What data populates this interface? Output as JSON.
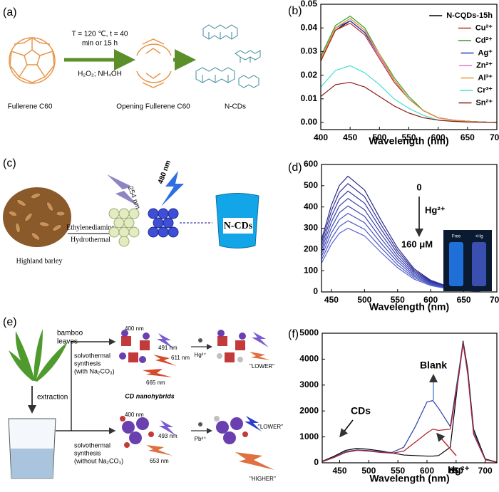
{
  "panels": {
    "a": {
      "label": "(a)",
      "condition": [
        "T = 120 ℃, t = 40",
        "min or 15 h"
      ],
      "reagents": "H₂O₂; NH₄OH",
      "items": [
        "Fullerene C60",
        "Opening Fullerene C60",
        "N-CDs"
      ]
    },
    "c": {
      "label": "(c)",
      "reagent": "Ethylenediamine",
      "method": "Hydrothermal",
      "source": "Highland barley",
      "excitations": [
        "254 nm",
        "480 nm"
      ],
      "product": "N-CDs"
    },
    "e": {
      "label": "(e)",
      "source": [
        "bamboo",
        "leaves"
      ],
      "step": "extraction",
      "route1": [
        "solvothermal",
        "synthesis",
        "(with Na₂CO₃)"
      ],
      "product": "CD nanohybrids",
      "route1_wavelengths": [
        "400 nm",
        "491 nm",
        "611 nm",
        "665 nm"
      ],
      "ion1": "Hg²⁺",
      "result1": "\"LOWER\"",
      "route2": [
        "solvothermal",
        "synthesis",
        "(without Na₂CO₃)"
      ],
      "route2_wavelengths": [
        "400 nm",
        "493 nm",
        "653 nm"
      ],
      "ion2": "Pb²⁺",
      "result2": [
        "\"LOWER\"",
        "\"HIGHER\""
      ]
    }
  },
  "chart_data": [
    {
      "type": "line",
      "label": "(b)",
      "x_label": "Wavelength (nm)",
      "legend": "upper right",
      "x": [
        400,
        425,
        450,
        475,
        500,
        525,
        550,
        575,
        600,
        625,
        650,
        675,
        700
      ],
      "xlim": [
        400,
        700
      ],
      "xticks": [
        400,
        450,
        500,
        550,
        600,
        650,
        700
      ],
      "ylim": [
        -0.003,
        0.05
      ],
      "yticks": [
        {
          "value": 0,
          "label": "0.00"
        },
        0.01,
        0.02,
        0.03,
        0.04,
        0.05
      ],
      "series": [
        {
          "name": "N-CQDs-15h",
          "color": "#000000",
          "values": [
            0.026,
            0.039,
            0.043,
            0.038,
            0.028,
            0.018,
            0.01,
            0.005,
            0.002,
            0.001,
            0.0005,
            0.0002,
            0
          ]
        },
        {
          "name": "Cu²⁺",
          "color": "#c0282d",
          "values": [
            0.026,
            0.039,
            0.042,
            0.037,
            0.027,
            0.017,
            0.01,
            0.005,
            0.002,
            0.001,
            0.0005,
            0.0002,
            0
          ]
        },
        {
          "name": "Cd²⁺",
          "color": "#2ca02c",
          "values": [
            0.028,
            0.041,
            0.045,
            0.04,
            0.029,
            0.019,
            0.011,
            0.005,
            0.002,
            0.001,
            0.0005,
            0.0002,
            0
          ]
        },
        {
          "name": "Ag⁺",
          "color": "#1f3fbf",
          "values": [
            0.027,
            0.04,
            0.043,
            0.038,
            0.028,
            0.018,
            0.01,
            0.005,
            0.002,
            0.001,
            0.0005,
            0.0002,
            0
          ]
        },
        {
          "name": "Zn²⁺",
          "color": "#e377c2",
          "values": [
            0.027,
            0.04,
            0.044,
            0.039,
            0.028,
            0.018,
            0.01,
            0.005,
            0.002,
            0.001,
            0.0005,
            0.0002,
            0
          ]
        },
        {
          "name": "Al³⁺",
          "color": "#e69a2e",
          "values": [
            0.027,
            0.04,
            0.044,
            0.039,
            0.029,
            0.018,
            0.01,
            0.005,
            0.002,
            0.001,
            0.0005,
            0.0002,
            0
          ]
        },
        {
          "name": "Cr³⁺",
          "color": "#40e0d0",
          "values": [
            0.015,
            0.022,
            0.024,
            0.021,
            0.016,
            0.01,
            0.006,
            0.003,
            0.001,
            0.0005,
            0.0002,
            0.0001,
            0
          ]
        },
        {
          "name": "Sn²⁺",
          "color": "#8b1a1a",
          "values": [
            0.011,
            0.016,
            0.017,
            0.015,
            0.011,
            0.007,
            0.004,
            0.002,
            0.001,
            0.0005,
            0.0002,
            0.0001,
            0
          ]
        }
      ]
    },
    {
      "type": "line",
      "label": "(d)",
      "x_label": "Wavelength (nm)",
      "x": [
        435,
        450,
        462,
        475,
        500,
        525,
        550,
        575,
        600,
        625,
        650,
        675
      ],
      "xlim": [
        435,
        700
      ],
      "xticks": [
        450,
        500,
        550,
        600,
        650,
        700
      ],
      "ylim": [
        0,
        600
      ],
      "yticks": [
        0,
        100,
        200,
        300,
        400,
        500,
        600
      ],
      "annotations": [
        "0",
        "Hg²⁺",
        "160 μM"
      ],
      "inset_labels": [
        "Free",
        "+Hg"
      ],
      "series": [
        {
          "color": "#2a2a8a",
          "values": [
            245,
            409,
            501,
            545,
            480,
            338,
            207,
            109,
            55,
            27,
            11,
            5
          ]
        },
        {
          "color": "#2f3096",
          "values": [
            230,
            383,
            469,
            510,
            449,
            316,
            194,
            102,
            51,
            26,
            10,
            5
          ]
        },
        {
          "color": "#3437a0",
          "values": [
            214,
            356,
            437,
            475,
            418,
            295,
            181,
            95,
            48,
            24,
            10,
            5
          ]
        },
        {
          "color": "#3a3fab",
          "values": [
            198,
            330,
            405,
            440,
            387,
            273,
            167,
            88,
            44,
            22,
            9,
            4
          ]
        },
        {
          "color": "#4048b5",
          "values": [
            182,
            304,
            373,
            405,
            356,
            251,
            154,
            81,
            41,
            20,
            8,
            4
          ]
        },
        {
          "color": "#4651bf",
          "values": [
            167,
            278,
            340,
            370,
            326,
            229,
            141,
            74,
            37,
            19,
            7,
            4
          ]
        },
        {
          "color": "#4c5ac8",
          "values": [
            151,
            251,
            308,
            335,
            295,
            208,
            127,
            67,
            34,
            17,
            7,
            3
          ]
        },
        {
          "color": "#5263d1",
          "values": [
            135,
            225,
            276,
            300,
            264,
            186,
            114,
            60,
            30,
            15,
            6,
            3
          ]
        }
      ]
    },
    {
      "type": "line",
      "label": "(f)",
      "x_label": "Wavelength (nm)",
      "x": [
        420,
        440,
        460,
        480,
        500,
        520,
        540,
        560,
        580,
        600,
        610,
        620,
        640,
        655,
        662,
        670,
        680,
        700,
        720
      ],
      "xlim": [
        420,
        720
      ],
      "xticks": [
        450,
        500,
        550,
        600,
        650,
        700
      ],
      "ylim": [
        0,
        5000
      ],
      "yticks": [
        0,
        1000,
        2000,
        3000,
        4000,
        5000
      ],
      "annotations": [
        "CDs",
        "Blank",
        "Hg²⁺"
      ],
      "series": [
        {
          "color": "#000000",
          "values": [
            60,
            250,
            480,
            560,
            520,
            460,
            380,
            300,
            280,
            260,
            260,
            280,
            600,
            3500,
            4700,
            3600,
            1300,
            150,
            30
          ]
        },
        {
          "color": "#2b3f9e",
          "values": [
            50,
            220,
            430,
            500,
            470,
            420,
            400,
            600,
            1400,
            2350,
            2400,
            2100,
            1400,
            3600,
            4650,
            3500,
            1200,
            130,
            25
          ]
        },
        {
          "color": "#b0202a",
          "values": [
            40,
            200,
            400,
            480,
            450,
            400,
            370,
            450,
            800,
            1150,
            1300,
            1250,
            1300,
            3400,
            4600,
            3400,
            1100,
            120,
            20
          ]
        }
      ]
    }
  ]
}
